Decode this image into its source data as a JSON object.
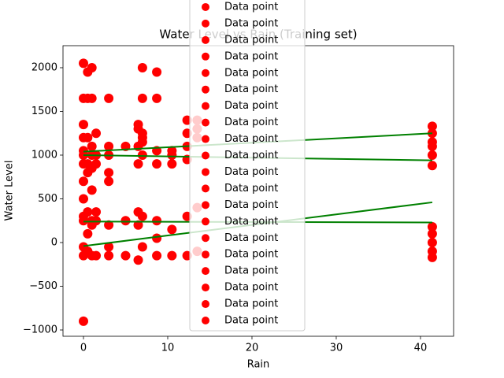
{
  "chart_data": {
    "type": "scatter",
    "title": "Water Level vs Rain (Training set)",
    "x_label": "Rain",
    "y_label": "Water Level",
    "xlim": [
      -2.43,
      43.93
    ],
    "ylim": [
      -1072,
      2252
    ],
    "xticks": [
      0,
      10,
      20,
      30,
      40
    ],
    "yticks": [
      {
        "value": -1000,
        "label": "−1000"
      },
      {
        "value": -500,
        "label": "−500"
      },
      0,
      500,
      1000,
      1500,
      2000
    ],
    "legend": "upper center",
    "series": [
      {
        "name": "Data point",
        "color": "#ff0000",
        "x": [
          0,
          0,
          0,
          0,
          0,
          0,
          0,
          0
        ],
        "values": [
          2050,
          1650,
          1350,
          1000,
          700,
          300,
          -150,
          -900
        ]
      },
      {
        "name": "Data point",
        "color": "#ff0000",
        "x": [
          0.5,
          0.5,
          0.5,
          0.5,
          0.5,
          0.5
        ],
        "values": [
          1950,
          1650,
          1200,
          900,
          350,
          -100
        ]
      },
      {
        "name": "Data point",
        "color": "#ff0000",
        "x": [
          1,
          1,
          1,
          1,
          1,
          1
        ],
        "values": [
          2000,
          1650,
          1100,
          850,
          250,
          -150
        ]
      },
      {
        "name": "Data point",
        "color": "#ff0000",
        "x": [
          1.5,
          1.5,
          1.5,
          1.5,
          1.5
        ],
        "values": [
          1250,
          1000,
          900,
          350,
          -150
        ]
      },
      {
        "name": "Data point",
        "color": "#ff0000",
        "x": [
          3,
          3,
          3,
          3,
          3,
          3
        ],
        "values": [
          1650,
          1100,
          800,
          700,
          200,
          -50
        ]
      },
      {
        "name": "Data point",
        "color": "#ff0000",
        "x": [
          5,
          5,
          5
        ],
        "values": [
          1100,
          250,
          -150
        ]
      },
      {
        "name": "Data point",
        "color": "#ff0000",
        "x": [
          6.5,
          6.5,
          6.5,
          6.5,
          6.5
        ],
        "values": [
          1350,
          1100,
          900,
          350,
          -200
        ]
      },
      {
        "name": "Data point",
        "color": "#ff0000",
        "x": [
          7,
          7,
          7,
          7,
          7,
          7
        ],
        "values": [
          2000,
          1650,
          1250,
          1000,
          300,
          -50
        ]
      },
      {
        "name": "Data point",
        "color": "#ff0000",
        "x": [
          8.7,
          8.7,
          8.7,
          8.7,
          8.7
        ],
        "values": [
          1950,
          1650,
          900,
          250,
          -150
        ]
      },
      {
        "name": "Data point",
        "color": "#ff0000",
        "x": [
          10.5,
          10.5,
          10.5,
          10.5
        ],
        "values": [
          1000,
          900,
          150,
          -150
        ]
      },
      {
        "name": "Data point",
        "color": "#ff0000",
        "x": [
          12.3,
          12.3,
          12.3,
          12.3,
          12.3
        ],
        "values": [
          1400,
          1100,
          950,
          300,
          -150
        ]
      },
      {
        "name": "Data point",
        "color": "#ff0000",
        "x": [
          13.5,
          13.5,
          13.5,
          13.5
        ],
        "values": [
          1400,
          1200,
          400,
          -100
        ]
      },
      {
        "name": "Data point",
        "color": "#ff0000",
        "x": [
          41.4,
          41.4,
          41.4,
          41.4,
          41.4
        ],
        "values": [
          1330,
          1250,
          1150,
          1000,
          880
        ]
      },
      {
        "name": "Data point",
        "color": "#ff0000",
        "x": [
          41.4,
          41.4,
          41.4,
          41.4,
          41.4
        ],
        "values": [
          180,
          100,
          0,
          -100,
          -170
        ]
      },
      {
        "name": "Data point",
        "color": "#ff0000",
        "x": [
          0,
          0.5,
          1,
          3
        ],
        "values": [
          1200,
          800,
          600,
          1000
        ]
      },
      {
        "name": "Data point",
        "color": "#ff0000",
        "x": [
          0,
          1,
          6.5,
          7
        ],
        "values": [
          500,
          200,
          1300,
          1200
        ]
      },
      {
        "name": "Data point",
        "color": "#ff0000",
        "x": [
          0,
          0.5,
          1.5,
          8.7
        ],
        "values": [
          -50,
          100,
          250,
          50
        ]
      },
      {
        "name": "Data point",
        "color": "#ff0000",
        "x": [
          0,
          7,
          12.3,
          41.4
        ],
        "values": [
          250,
          1150,
          1250,
          1100
        ]
      },
      {
        "name": "Data point",
        "color": "#ff0000",
        "x": [
          0,
          1,
          3,
          10.5
        ],
        "values": [
          900,
          1000,
          -150,
          1050
        ]
      },
      {
        "name": "Data point",
        "color": "#ff0000",
        "x": [
          0,
          6.5,
          8.7,
          13.5
        ],
        "values": [
          1050,
          200,
          1050,
          1300
        ]
      }
    ],
    "lines": [
      {
        "color": "#008000",
        "x": [
          0,
          41.4
        ],
        "values": [
          1040,
          1250
        ]
      },
      {
        "color": "#008000",
        "x": [
          0,
          41.4
        ],
        "values": [
          1000,
          940
        ]
      },
      {
        "color": "#008000",
        "x": [
          0,
          41.4
        ],
        "values": [
          -40,
          460
        ]
      },
      {
        "color": "#008000",
        "x": [
          0,
          41.4
        ],
        "values": [
          240,
          230
        ]
      }
    ]
  }
}
